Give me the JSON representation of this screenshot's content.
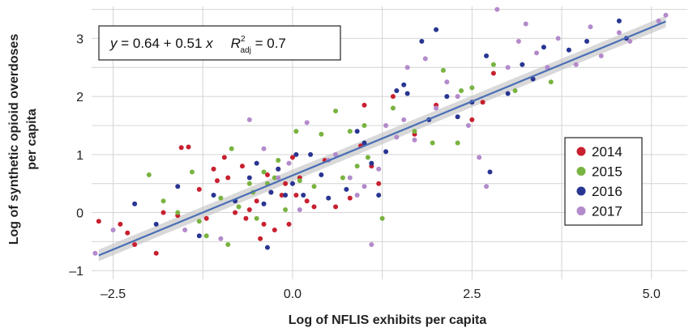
{
  "chart_data": {
    "type": "scatter",
    "xlabel": "Log of NFLIS exhibits per capita",
    "ylabel_lines": [
      "Log of synthetic opioid overdoses",
      "per capita"
    ],
    "x_ticks": [
      -2.5,
      0.0,
      2.5,
      5.0
    ],
    "x_tick_labels": [
      "–2.5",
      "0.0",
      "2.5",
      "5.0"
    ],
    "y_ticks": [
      -1,
      0,
      1,
      2,
      3
    ],
    "y_tick_labels": [
      "–1",
      "0",
      "1",
      "2",
      "3"
    ],
    "xlim": [
      -2.8,
      5.5
    ],
    "ylim": [
      -1.15,
      3.55
    ],
    "grid": true,
    "legend_position": "right",
    "annotation": {
      "prefix": "y",
      "equation": " = 0.64 + 0.51 ",
      "xvar": "x",
      "r2_symbol": "R",
      "r2_sup": "2",
      "r2_sub": "adj",
      "r2_value": " = 0.7"
    },
    "fit": {
      "intercept": 0.64,
      "slope": 0.51,
      "x_range": [
        -2.7,
        5.2
      ],
      "band_halfwidth": 0.1,
      "color": "#4a6fb5"
    },
    "series": [
      {
        "name": "2014",
        "color": "#c8202f",
        "points": [
          [
            -2.7,
            -0.15
          ],
          [
            -2.4,
            -0.2
          ],
          [
            -2.2,
            -0.55
          ],
          [
            -2.3,
            -0.35
          ],
          [
            -1.9,
            -0.7
          ],
          [
            -1.8,
            0.0
          ],
          [
            -1.6,
            -0.05
          ],
          [
            -1.55,
            1.12
          ],
          [
            -1.45,
            1.13
          ],
          [
            -1.3,
            0.4
          ],
          [
            -1.2,
            -0.1
          ],
          [
            -1.1,
            0.75
          ],
          [
            -1.05,
            0.55
          ],
          [
            -0.95,
            0.95
          ],
          [
            -0.9,
            0.6
          ],
          [
            -0.8,
            0.0
          ],
          [
            -0.7,
            0.8
          ],
          [
            -0.65,
            -0.1
          ],
          [
            -0.6,
            0.05
          ],
          [
            -0.5,
            0.2
          ],
          [
            -0.45,
            -0.45
          ],
          [
            -0.4,
            -0.2
          ],
          [
            -0.35,
            0.65
          ],
          [
            -0.3,
            0.35
          ],
          [
            -0.25,
            -0.3
          ],
          [
            -0.2,
            0.75
          ],
          [
            -0.15,
            0.3
          ],
          [
            -0.1,
            0.5
          ],
          [
            -0.05,
            -0.2
          ],
          [
            0.0,
            0.95
          ],
          [
            0.05,
            0.3
          ],
          [
            0.1,
            0.6
          ],
          [
            0.2,
            0.2
          ],
          [
            0.3,
            0.1
          ],
          [
            0.45,
            0.9
          ],
          [
            0.6,
            0.1
          ],
          [
            0.8,
            0.25
          ],
          [
            0.95,
            1.15
          ],
          [
            1.0,
            1.85
          ],
          [
            1.1,
            0.8
          ],
          [
            1.2,
            0.5
          ],
          [
            1.4,
            2.0
          ],
          [
            1.7,
            1.35
          ],
          [
            2.0,
            1.85
          ],
          [
            2.5,
            1.6
          ],
          [
            2.65,
            1.9
          ],
          [
            2.8,
            2.4
          ]
        ]
      },
      {
        "name": "2015",
        "color": "#79b340",
        "points": [
          [
            -2.0,
            0.65
          ],
          [
            -1.8,
            0.2
          ],
          [
            -1.6,
            0.0
          ],
          [
            -1.4,
            0.7
          ],
          [
            -1.3,
            -0.15
          ],
          [
            -1.2,
            -0.4
          ],
          [
            -1.0,
            0.25
          ],
          [
            -0.9,
            -0.55
          ],
          [
            -0.85,
            1.1
          ],
          [
            -0.75,
            0.1
          ],
          [
            -0.6,
            0.5
          ],
          [
            -0.55,
            0.35
          ],
          [
            -0.5,
            -0.1
          ],
          [
            -0.4,
            0.7
          ],
          [
            -0.35,
            0.5
          ],
          [
            -0.25,
            0.6
          ],
          [
            -0.2,
            0.9
          ],
          [
            -0.1,
            0.05
          ],
          [
            0.05,
            1.4
          ],
          [
            0.1,
            0.55
          ],
          [
            0.3,
            0.45
          ],
          [
            0.4,
            1.35
          ],
          [
            0.6,
            1.75
          ],
          [
            0.7,
            0.6
          ],
          [
            0.8,
            1.4
          ],
          [
            0.9,
            0.8
          ],
          [
            1.0,
            1.5
          ],
          [
            1.05,
            0.95
          ],
          [
            1.25,
            -0.1
          ],
          [
            1.4,
            1.8
          ],
          [
            1.7,
            1.4
          ],
          [
            1.95,
            1.2
          ],
          [
            2.1,
            2.45
          ],
          [
            2.3,
            1.2
          ],
          [
            2.35,
            2.1
          ],
          [
            2.5,
            2.15
          ],
          [
            2.8,
            2.55
          ],
          [
            3.1,
            2.1
          ],
          [
            3.6,
            2.25
          ]
        ]
      },
      {
        "name": "2016",
        "color": "#283592",
        "points": [
          [
            -2.2,
            0.15
          ],
          [
            -1.9,
            -0.2
          ],
          [
            -1.6,
            0.45
          ],
          [
            -1.3,
            -0.4
          ],
          [
            -1.1,
            0.3
          ],
          [
            -0.8,
            0.2
          ],
          [
            -0.6,
            0.6
          ],
          [
            -0.5,
            0.85
          ],
          [
            -0.4,
            0.15
          ],
          [
            -0.35,
            -0.6
          ],
          [
            -0.3,
            0.35
          ],
          [
            -0.2,
            0.75
          ],
          [
            -0.1,
            0.3
          ],
          [
            0.0,
            0.5
          ],
          [
            0.05,
            1.0
          ],
          [
            0.15,
            0.3
          ],
          [
            0.25,
            1.0
          ],
          [
            0.4,
            0.65
          ],
          [
            0.5,
            0.25
          ],
          [
            0.75,
            0.4
          ],
          [
            0.9,
            1.4
          ],
          [
            1.0,
            1.2
          ],
          [
            1.1,
            0.85
          ],
          [
            1.2,
            0.3
          ],
          [
            1.3,
            1.05
          ],
          [
            1.45,
            2.1
          ],
          [
            1.55,
            2.2
          ],
          [
            1.6,
            2.05
          ],
          [
            1.8,
            2.95
          ],
          [
            1.9,
            1.6
          ],
          [
            2.0,
            3.15
          ],
          [
            2.15,
            2.0
          ],
          [
            2.3,
            1.65
          ],
          [
            2.5,
            1.9
          ],
          [
            2.7,
            2.7
          ],
          [
            3.0,
            2.05
          ],
          [
            3.2,
            2.55
          ],
          [
            3.35,
            2.3
          ],
          [
            3.5,
            2.85
          ],
          [
            3.85,
            2.8
          ],
          [
            4.1,
            2.95
          ],
          [
            4.55,
            3.3
          ],
          [
            4.65,
            3.0
          ],
          [
            2.75,
            0.7
          ]
        ]
      },
      {
        "name": "2017",
        "color": "#b38acb",
        "points": [
          [
            -2.75,
            -0.7
          ],
          [
            -2.5,
            -0.3
          ],
          [
            -1.5,
            -0.3
          ],
          [
            -1.0,
            -0.45
          ],
          [
            -0.6,
            1.6
          ],
          [
            -0.4,
            1.1
          ],
          [
            -0.2,
            0.6
          ],
          [
            -0.05,
            0.85
          ],
          [
            0.1,
            0.05
          ],
          [
            0.2,
            1.55
          ],
          [
            0.5,
            0.9
          ],
          [
            0.6,
            1.0
          ],
          [
            0.8,
            0.6
          ],
          [
            0.9,
            0.3
          ],
          [
            1.0,
            0.45
          ],
          [
            1.1,
            -0.55
          ],
          [
            1.2,
            0.75
          ],
          [
            1.3,
            1.5
          ],
          [
            1.45,
            1.3
          ],
          [
            1.55,
            1.6
          ],
          [
            1.6,
            2.5
          ],
          [
            1.7,
            1.25
          ],
          [
            1.85,
            2.65
          ],
          [
            2.0,
            1.8
          ],
          [
            2.15,
            2.25
          ],
          [
            2.3,
            2.0
          ],
          [
            2.45,
            1.5
          ],
          [
            2.6,
            0.95
          ],
          [
            2.7,
            0.45
          ],
          [
            2.85,
            3.5
          ],
          [
            3.0,
            2.5
          ],
          [
            3.15,
            2.95
          ],
          [
            3.25,
            3.25
          ],
          [
            3.4,
            2.75
          ],
          [
            3.55,
            2.5
          ],
          [
            3.7,
            3.0
          ],
          [
            3.95,
            2.55
          ],
          [
            4.15,
            3.2
          ],
          [
            4.3,
            2.7
          ],
          [
            4.55,
            3.1
          ],
          [
            4.7,
            2.95
          ],
          [
            5.1,
            3.3
          ],
          [
            5.2,
            3.4
          ]
        ]
      }
    ]
  }
}
